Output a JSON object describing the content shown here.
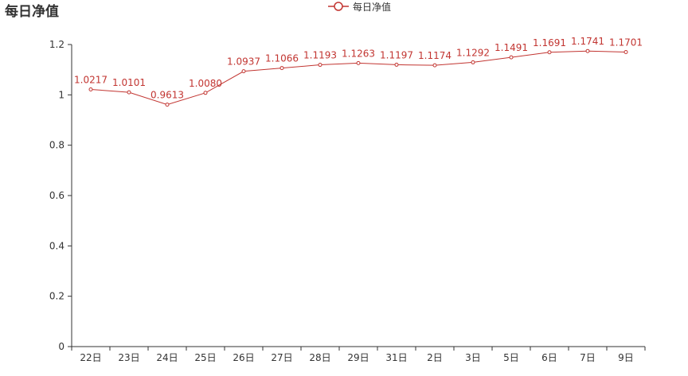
{
  "chart_data": {
    "type": "line",
    "title": "每日净值",
    "legend": {
      "entries": [
        "每日净值"
      ],
      "position": "top-center"
    },
    "categories": [
      "22日",
      "23日",
      "24日",
      "25日",
      "26日",
      "27日",
      "28日",
      "29日",
      "31日",
      "2日",
      "3日",
      "5日",
      "6日",
      "7日",
      "9日"
    ],
    "series": [
      {
        "name": "每日净值",
        "color": "#c23531",
        "values": [
          1.0217,
          1.0101,
          0.9613,
          1.008,
          1.0937,
          1.1066,
          1.1193,
          1.1263,
          1.1197,
          1.1174,
          1.1292,
          1.1491,
          1.1691,
          1.1741,
          1.1701
        ],
        "labels": [
          "1.0217",
          "1.0101",
          "0.9613",
          "1.0080",
          "1.0937",
          "1.1066",
          "1.1193",
          "1.1263",
          "1.1197",
          "1.1174",
          "1.1292",
          "1.1491",
          "1.1691",
          "1.1741",
          "1.1701"
        ]
      }
    ],
    "ylim": [
      0,
      1.2
    ],
    "yticks": [
      "0",
      "0.2",
      "0.4",
      "0.6",
      "0.8",
      "1",
      "1.2"
    ],
    "grid": false,
    "xlabel": "",
    "ylabel": ""
  }
}
